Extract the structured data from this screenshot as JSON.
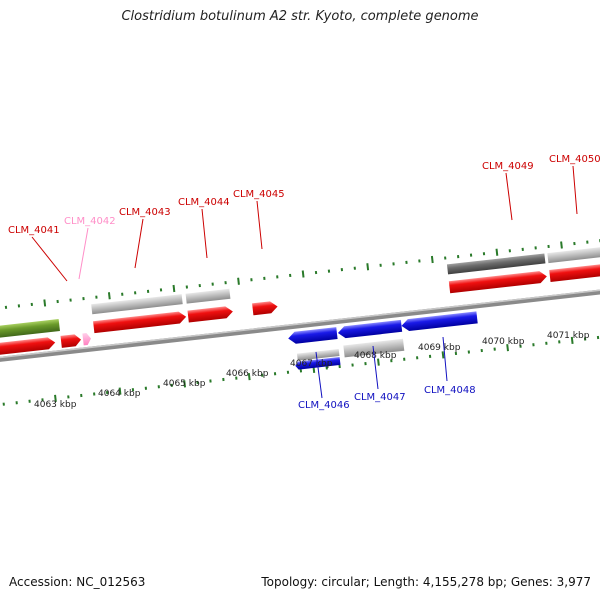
{
  "title": "Clostridium botulinum A2 str. Kyoto, complete genome",
  "footer": {
    "accession": "Accession: NC_012563",
    "stats": "Topology: circular; Length: 4,155,278 bp; Genes: 3,977"
  },
  "colors": {
    "forward_cds": "#e00000",
    "reverse_cds": "#1010d8",
    "pseudo_gene": "#ff9acc",
    "feature_gray": "#b8b8b8",
    "feature_dark": "#6a6a6a",
    "feature_green": "#6a9a2a",
    "tick_green": "#2a7a2a",
    "backbone": "#8a8a8a",
    "label_red": "#cc0000",
    "label_pink": "#ff8fc8",
    "label_blue": "#1010c0"
  },
  "scale_labels": [
    "4063 kbp",
    "4064 kbp",
    "4065 kbp",
    "4066 kbp",
    "4067 kbp",
    "4068 kbp",
    "4069 kbp",
    "4070 kbp",
    "4071 kbp"
  ],
  "gene_labels": {
    "top": [
      {
        "text": "CLM_4041",
        "color": "label_red"
      },
      {
        "text": "CLM_4042",
        "color": "label_pink"
      },
      {
        "text": "CLM_4043",
        "color": "label_red"
      },
      {
        "text": "CLM_4044",
        "color": "label_red"
      },
      {
        "text": "CLM_4045",
        "color": "label_red"
      },
      {
        "text": "CLM_4049",
        "color": "label_red"
      },
      {
        "text": "CLM_4050",
        "color": "label_red"
      }
    ],
    "bottom": [
      {
        "text": "CLM_4046",
        "color": "label_blue"
      },
      {
        "text": "CLM_4047",
        "color": "label_blue"
      },
      {
        "text": "CLM_4048",
        "color": "label_blue"
      }
    ]
  }
}
